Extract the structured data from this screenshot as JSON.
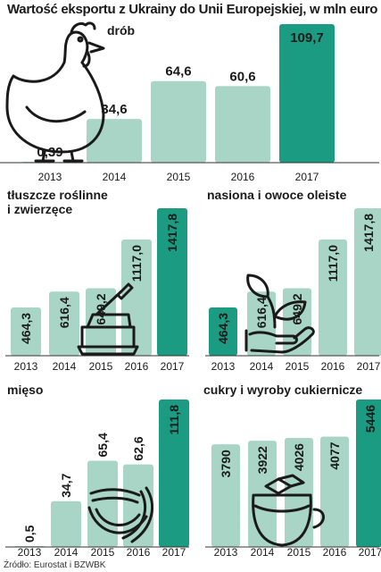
{
  "title": "Wartość eksportu z Ukrainy do Unii Europejskiej, w mln euro",
  "source": "Źródło: Eurostat i BZWBK",
  "colors": {
    "light": "#a8d5c6",
    "dark": "#1b9b82"
  },
  "chart_data": [
    {
      "type": "bar",
      "title": "drób",
      "categories": [
        "2013",
        "2014",
        "2015",
        "2016",
        "2017"
      ],
      "values": [
        0.39,
        34.6,
        64.6,
        60.6,
        109.7
      ],
      "labels": [
        "0,39",
        "34,6",
        "64,6",
        "60,6",
        "109,7"
      ],
      "highlight": 4,
      "icon": "chicken-icon"
    },
    {
      "type": "bar",
      "title": "tłuszcze roślinne\ni zwierzęce",
      "categories": [
        "2013",
        "2014",
        "2015",
        "2016",
        "2017"
      ],
      "values": [
        464.3,
        616.4,
        649.2,
        1117.0,
        1417.8
      ],
      "labels": [
        "464,3",
        "616,4",
        "649,2",
        "1117,0",
        "1417,8"
      ],
      "highlight": 4,
      "icon": "butter-dish-icon"
    },
    {
      "type": "bar",
      "title": "nasiona i owoce oleiste",
      "categories": [
        "2013",
        "2014",
        "2015",
        "2016",
        "2017"
      ],
      "values": [
        464.3,
        616.4,
        649.2,
        1117.0,
        1417.8
      ],
      "labels": [
        "464,3",
        "616,4",
        "649,2",
        "1117,0",
        "1417,8"
      ],
      "highlight": 0,
      "icon": "plant-hand-icon"
    },
    {
      "type": "bar",
      "title": "mięso",
      "categories": [
        "2013",
        "2014",
        "2015",
        "2016",
        "2017"
      ],
      "values": [
        0.5,
        34.7,
        65.4,
        62.6,
        111.8
      ],
      "labels": [
        "0,5",
        "34,7",
        "65,4",
        "62,6",
        "111,8"
      ],
      "highlight": 4,
      "icon": "sausages-icon"
    },
    {
      "type": "bar",
      "title": "cukry i wyroby cukiernicze",
      "categories": [
        "2013",
        "2014",
        "2015",
        "2016",
        "2017"
      ],
      "values": [
        3790,
        3922,
        4026,
        4077,
        5446
      ],
      "labels": [
        "3790",
        "3922",
        "4026",
        "4077",
        "5446"
      ],
      "highlight": 4,
      "icon": "sugar-jar-icon"
    }
  ]
}
